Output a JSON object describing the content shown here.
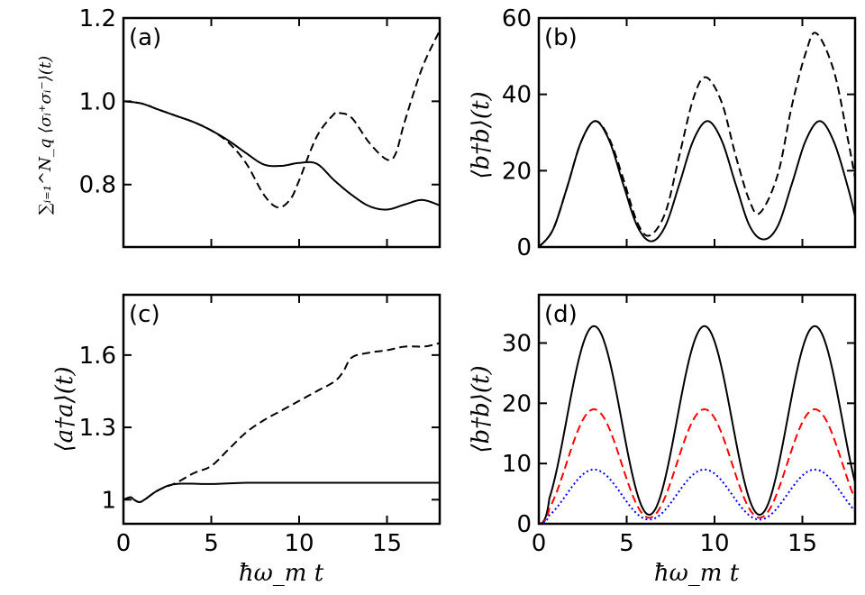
{
  "chart_data": [
    {
      "panel": "a",
      "type": "line",
      "panel_label": "(a)",
      "ylabel": "∑ᵢ₌₁^N_q ⟨σᵢ⁺σᵢ⁻⟩(t)",
      "xlabel": "",
      "xlim": [
        0,
        18
      ],
      "ylim": [
        0.65,
        1.2
      ],
      "xticks": [
        0,
        5,
        10,
        15
      ],
      "xticklabels": [],
      "yticks": [
        0.8,
        1.0,
        1.2
      ],
      "yticklabels": [
        "0.8",
        "1.0",
        "1.2"
      ],
      "series": [
        {
          "name": "solid",
          "color": "#000000",
          "dash": "solid",
          "x": [
            0,
            1,
            2,
            3,
            4,
            5,
            6,
            7,
            8,
            9,
            10,
            11,
            12,
            13,
            14,
            15,
            16,
            17,
            18
          ],
          "y": [
            1.0,
            0.995,
            0.98,
            0.965,
            0.95,
            0.93,
            0.905,
            0.875,
            0.848,
            0.845,
            0.852,
            0.85,
            0.81,
            0.775,
            0.748,
            0.74,
            0.752,
            0.763,
            0.75
          ]
        },
        {
          "name": "dashed",
          "color": "#000000",
          "dash": "dashed",
          "x": [
            0,
            1,
            2,
            3,
            4,
            5,
            6,
            7,
            8,
            8.8,
            9.5,
            10,
            11,
            12,
            12.3,
            13,
            14,
            15,
            15.5,
            16,
            17,
            18
          ],
          "y": [
            1.0,
            0.995,
            0.98,
            0.965,
            0.95,
            0.93,
            0.9,
            0.85,
            0.775,
            0.745,
            0.765,
            0.81,
            0.915,
            0.97,
            0.972,
            0.96,
            0.9,
            0.86,
            0.875,
            0.95,
            1.08,
            1.17
          ]
        }
      ]
    },
    {
      "panel": "b",
      "type": "line",
      "panel_label": "(b)",
      "ylabel": "⟨b†b⟩(t)",
      "xlabel": "",
      "xlim": [
        0,
        18
      ],
      "ylim": [
        0,
        60
      ],
      "xticks": [
        0,
        5,
        10,
        15
      ],
      "xticklabels": [],
      "yticks": [
        0,
        20,
        40,
        60
      ],
      "yticklabels": [
        "0",
        "20",
        "40",
        "60"
      ],
      "series": [
        {
          "name": "solid",
          "color": "#000000",
          "dash": "solid",
          "x": [
            0,
            0.8,
            1.6,
            2.4,
            3.2,
            4.0,
            4.8,
            5.6,
            6.4,
            7.2,
            8.0,
            8.8,
            9.6,
            10.4,
            11.2,
            12.0,
            12.8,
            13.6,
            14.4,
            15.2,
            16.0,
            16.8,
            17.6,
            18
          ],
          "y": [
            0,
            4.5,
            15.5,
            27.5,
            33,
            28,
            16.5,
            5.5,
            1.5,
            5.5,
            16.5,
            28,
            33,
            28,
            16.5,
            5.5,
            2,
            5.5,
            16.5,
            28,
            33,
            27.5,
            15.5,
            8
          ]
        },
        {
          "name": "dashed",
          "color": "#000000",
          "dash": "dashed",
          "x": [
            0,
            0.8,
            1.6,
            2.4,
            3.2,
            4.0,
            4.8,
            5.6,
            6.3,
            7.2,
            8.0,
            8.8,
            9.5,
            10.4,
            11.2,
            12.0,
            12.6,
            13.6,
            14.4,
            15.2,
            15.8,
            16.8,
            17.6,
            18
          ],
          "y": [
            0,
            4.5,
            15.5,
            27.5,
            33,
            28.5,
            18,
            6.5,
            3,
            9,
            24,
            39,
            44.5,
            38,
            24,
            12,
            9,
            19,
            37,
            51,
            56,
            46,
            28,
            18
          ]
        }
      ]
    },
    {
      "panel": "c",
      "type": "line",
      "panel_label": "(c)",
      "ylabel": "⟨a†a⟩(t)",
      "xlabel": "ħω_m t",
      "xlim": [
        0,
        18
      ],
      "ylim": [
        0.9,
        1.85
      ],
      "xticks": [
        0,
        5,
        10,
        15
      ],
      "xticklabels": [
        "0",
        "5",
        "10",
        "15"
      ],
      "yticks": [
        1.0,
        1.3,
        1.6
      ],
      "yticklabels": [
        "1",
        "1.3",
        "1.6"
      ],
      "series": [
        {
          "name": "solid",
          "color": "#000000",
          "dash": "solid",
          "x": [
            0,
            0.4,
            0.6,
            0.9,
            1.2,
            2.0,
            3.0,
            5.0,
            7.0,
            10.0,
            14.0,
            18.0
          ],
          "y": [
            1.0,
            1.01,
            1.0,
            0.99,
            1.0,
            1.04,
            1.065,
            1.065,
            1.07,
            1.07,
            1.07,
            1.07
          ]
        },
        {
          "name": "dashed",
          "color": "#000000",
          "dash": "dashed",
          "x": [
            0,
            0.4,
            0.6,
            0.9,
            1.2,
            2.0,
            3.0,
            4.0,
            5.0,
            6.0,
            7.0,
            8.0,
            9.0,
            10.0,
            11.0,
            12.0,
            12.5,
            13.0,
            14.0,
            15.0,
            16.0,
            17.0,
            17.5,
            18.0
          ],
          "y": [
            1.0,
            1.01,
            1.0,
            0.99,
            1.0,
            1.04,
            1.07,
            1.11,
            1.14,
            1.21,
            1.28,
            1.33,
            1.37,
            1.41,
            1.45,
            1.49,
            1.53,
            1.59,
            1.61,
            1.62,
            1.635,
            1.635,
            1.64,
            1.65
          ]
        }
      ]
    },
    {
      "panel": "d",
      "type": "line",
      "panel_label": "(d)",
      "ylabel": "⟨b†b⟩(t)",
      "xlabel": "ħω_m t",
      "xlim": [
        0,
        18
      ],
      "ylim": [
        0,
        38
      ],
      "xticks": [
        0,
        5,
        10,
        15
      ],
      "xticklabels": [
        "0",
        "5",
        "10",
        "15"
      ],
      "yticks": [
        0,
        10,
        20,
        30
      ],
      "yticklabels": [
        "0",
        "10",
        "20",
        "30"
      ],
      "series": [
        {
          "name": "solid black",
          "color": "#000000",
          "dash": "solid",
          "amplitude": 32.8,
          "minimum": 1.5
        },
        {
          "name": "dashed red",
          "color": "#ff0000",
          "dash": "dashed",
          "amplitude": 19.0,
          "minimum": 1.0
        },
        {
          "name": "dotted blue",
          "color": "#0000ff",
          "dash": "dotted",
          "amplitude": 9.0,
          "minimum": 0.7
        }
      ]
    }
  ]
}
